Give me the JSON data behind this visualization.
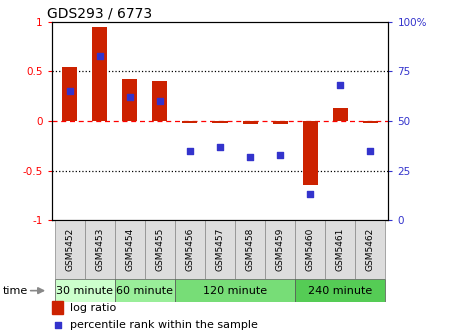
{
  "title": "GDS293 / 6773",
  "samples": [
    "GSM5452",
    "GSM5453",
    "GSM5454",
    "GSM5455",
    "GSM5456",
    "GSM5457",
    "GSM5458",
    "GSM5459",
    "GSM5460",
    "GSM5461",
    "GSM5462"
  ],
  "log_ratio": [
    0.54,
    0.95,
    0.42,
    0.4,
    -0.02,
    -0.02,
    -0.03,
    -0.03,
    -0.65,
    0.13,
    -0.02
  ],
  "percentile": [
    65,
    83,
    62,
    60,
    35,
    37,
    32,
    33,
    13,
    68,
    35
  ],
  "bar_color": "#cc2200",
  "dot_color": "#3333cc",
  "left_ylim": [
    -1,
    1
  ],
  "right_ylim": [
    0,
    100
  ],
  "left_yticks": [
    -1,
    -0.5,
    0,
    0.5,
    1
  ],
  "right_yticks": [
    0,
    25,
    50,
    75,
    100
  ],
  "groups": [
    {
      "label": "30 minute",
      "start": 0,
      "end": 1,
      "color": "#ccffcc"
    },
    {
      "label": "60 minute",
      "start": 2,
      "end": 3,
      "color": "#99ee99"
    },
    {
      "label": "120 minute",
      "start": 4,
      "end": 7,
      "color": "#77dd77"
    },
    {
      "label": "240 minute",
      "start": 8,
      "end": 10,
      "color": "#44cc44"
    }
  ],
  "time_label": "time",
  "legend_logratio": "log ratio",
  "legend_percentile": "percentile rank within the sample",
  "bar_width": 0.5,
  "dot_size": 25
}
